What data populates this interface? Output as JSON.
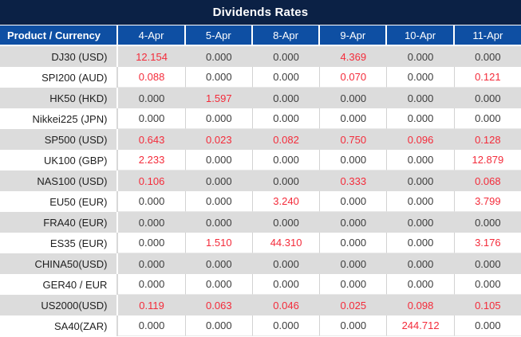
{
  "title": "Dividends Rates",
  "colors": {
    "title_bar_bg": "#0b2145",
    "header_row_bg": "#0e4fa3",
    "header_text": "#ffffff",
    "row_alt_bg": "#dcdcdc",
    "row_bg": "#ffffff",
    "zero_value_color": "#3c3c3c",
    "nonzero_value_color": "#f42b3a"
  },
  "chart_data": {
    "type": "table",
    "title": "Dividends Rates",
    "columns": [
      "Product / Currency",
      "4-Apr",
      "5-Apr",
      "8-Apr",
      "9-Apr",
      "10-Apr",
      "11-Apr"
    ],
    "highlight_rule": "non-zero values rendered in red, zero values in dark gray; rows alternate gray/white starting gray",
    "rows": [
      {
        "product": "DJ30 (USD)",
        "values": [
          "12.154",
          "0.000",
          "0.000",
          "4.369",
          "0.000",
          "0.000"
        ]
      },
      {
        "product": "SPI200 (AUD)",
        "values": [
          "0.088",
          "0.000",
          "0.000",
          "0.070",
          "0.000",
          "0.121"
        ]
      },
      {
        "product": "HK50 (HKD)",
        "values": [
          "0.000",
          "1.597",
          "0.000",
          "0.000",
          "0.000",
          "0.000"
        ]
      },
      {
        "product": "Nikkei225 (JPN)",
        "values": [
          "0.000",
          "0.000",
          "0.000",
          "0.000",
          "0.000",
          "0.000"
        ]
      },
      {
        "product": "SP500 (USD)",
        "values": [
          "0.643",
          "0.023",
          "0.082",
          "0.750",
          "0.096",
          "0.128"
        ]
      },
      {
        "product": "UK100 (GBP)",
        "values": [
          "2.233",
          "0.000",
          "0.000",
          "0.000",
          "0.000",
          "12.879"
        ]
      },
      {
        "product": "NAS100 (USD)",
        "values": [
          "0.106",
          "0.000",
          "0.000",
          "0.333",
          "0.000",
          "0.068"
        ]
      },
      {
        "product": "EU50 (EUR)",
        "values": [
          "0.000",
          "0.000",
          "3.240",
          "0.000",
          "0.000",
          "3.799"
        ]
      },
      {
        "product": "FRA40 (EUR)",
        "values": [
          "0.000",
          "0.000",
          "0.000",
          "0.000",
          "0.000",
          "0.000"
        ]
      },
      {
        "product": "ES35 (EUR)",
        "values": [
          "0.000",
          "1.510",
          "44.310",
          "0.000",
          "0.000",
          "3.176"
        ]
      },
      {
        "product": "CHINA50(USD)",
        "values": [
          "0.000",
          "0.000",
          "0.000",
          "0.000",
          "0.000",
          "0.000"
        ]
      },
      {
        "product": "GER40 / EUR",
        "values": [
          "0.000",
          "0.000",
          "0.000",
          "0.000",
          "0.000",
          "0.000"
        ]
      },
      {
        "product": "US2000(USD)",
        "values": [
          "0.119",
          "0.063",
          "0.046",
          "0.025",
          "0.098",
          "0.105"
        ]
      },
      {
        "product": "SA40(ZAR)",
        "values": [
          "0.000",
          "0.000",
          "0.000",
          "0.000",
          "244.712",
          "0.000"
        ]
      }
    ]
  }
}
